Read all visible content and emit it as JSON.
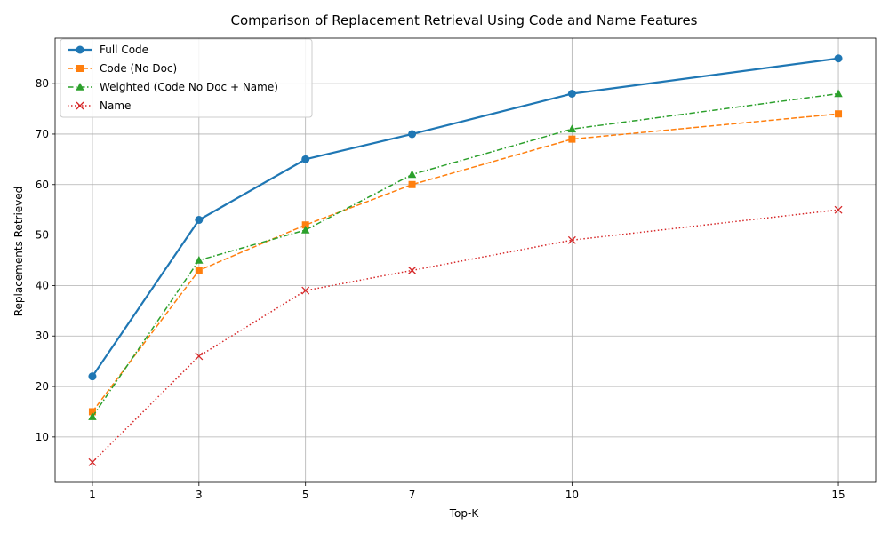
{
  "chart_data": {
    "type": "line",
    "title": "Comparison of Replacement Retrieval Using Code and Name Features",
    "xlabel": "Top-K",
    "ylabel": "Replacements Retrieved",
    "x": [
      1,
      3,
      5,
      7,
      10,
      15
    ],
    "xticks": [
      "1",
      "3",
      "5",
      "7",
      "10",
      "15"
    ],
    "yticks": [
      10,
      20,
      30,
      40,
      50,
      60,
      70,
      80
    ],
    "xlim": [
      0.3,
      15.7
    ],
    "ylim": [
      1,
      89
    ],
    "grid": true,
    "legend_position": "top-left",
    "series": [
      {
        "name": "Full Code",
        "values": [
          22,
          53,
          65,
          70,
          78,
          85
        ],
        "color": "#1f77b4",
        "marker": "circle",
        "linestyle": "solid"
      },
      {
        "name": "Code (No Doc)",
        "values": [
          15,
          43,
          52,
          60,
          69,
          74
        ],
        "color": "#ff7f0e",
        "marker": "square",
        "linestyle": "dashed"
      },
      {
        "name": "Weighted (Code No Doc + Name)",
        "values": [
          14,
          45,
          51,
          62,
          71,
          78
        ],
        "color": "#2ca02c",
        "marker": "triangle",
        "linestyle": "dashdot"
      },
      {
        "name": "Name",
        "values": [
          5,
          26,
          39,
          43,
          49,
          55
        ],
        "color": "#d62728",
        "marker": "x",
        "linestyle": "dotted"
      }
    ]
  }
}
